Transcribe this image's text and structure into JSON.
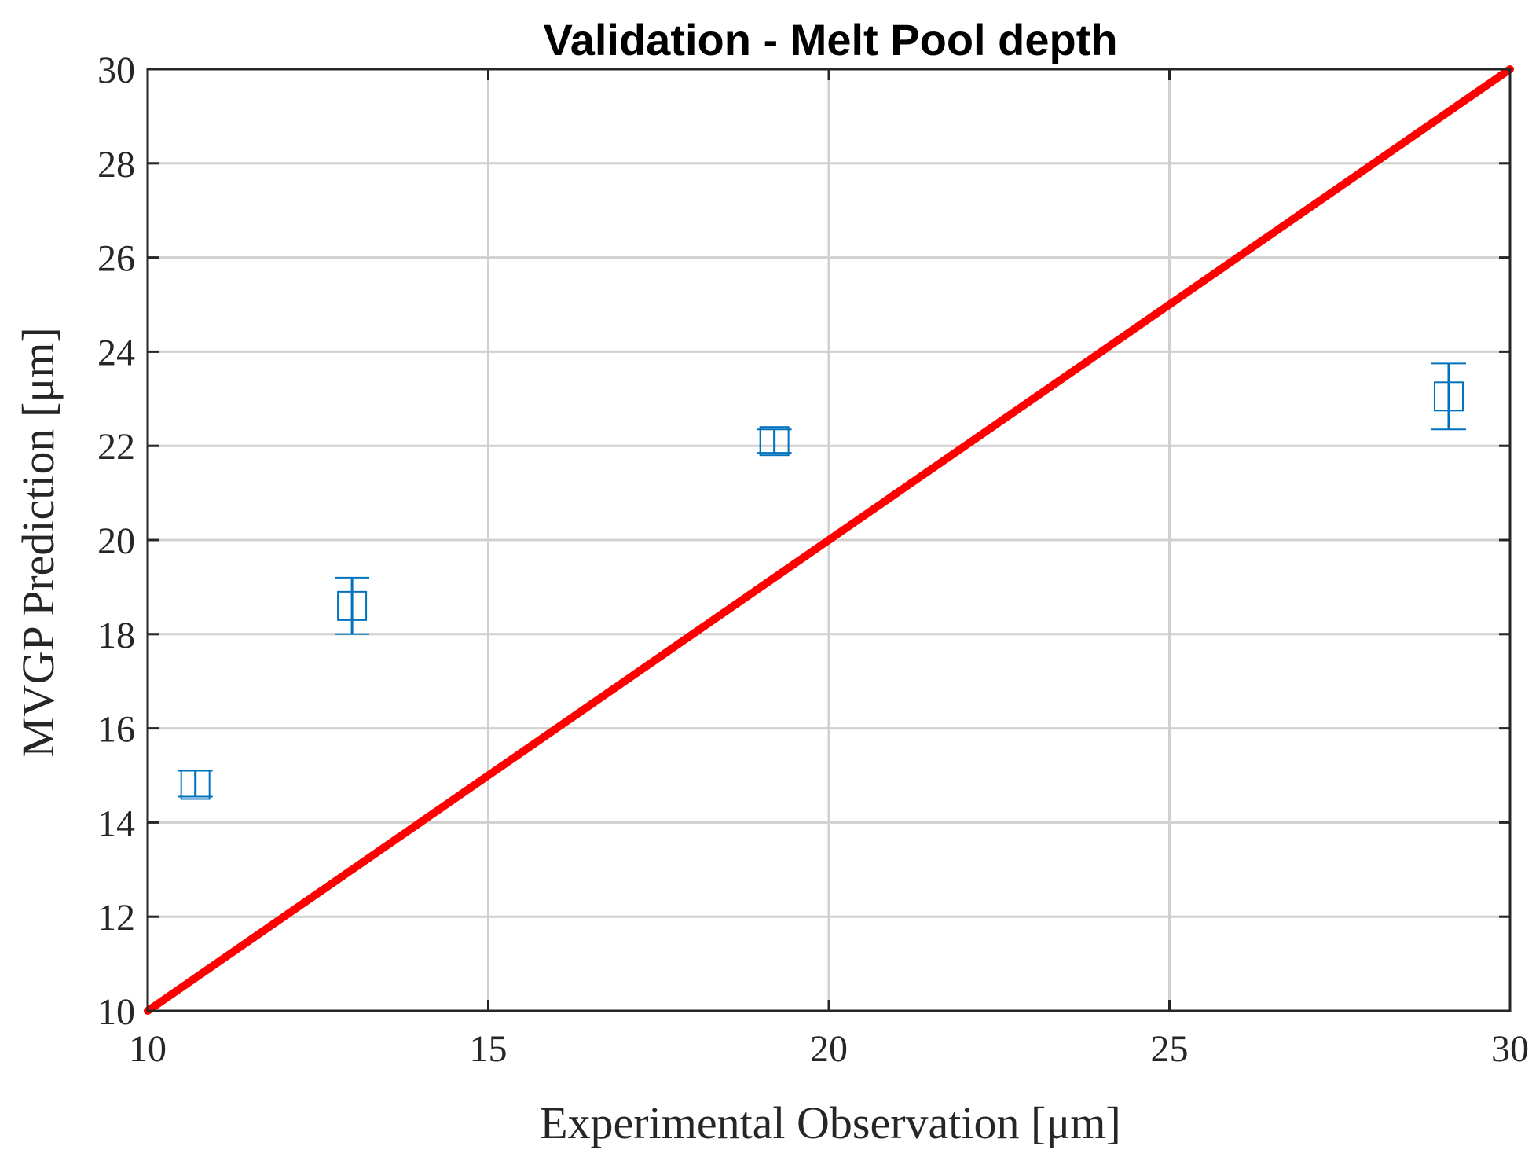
{
  "chart_data": {
    "type": "scatter",
    "title": "Validation - Melt Pool depth",
    "xlabel": "Experimental Observation [μm]",
    "ylabel": "MVGP Prediction [μm]",
    "xlim": [
      10,
      30
    ],
    "ylim": [
      10,
      30
    ],
    "xticks": [
      "10",
      "15",
      "20",
      "25",
      "30"
    ],
    "yticks": [
      "10",
      "12",
      "14",
      "16",
      "18",
      "20",
      "22",
      "24",
      "26",
      "28",
      "30"
    ],
    "grid": true,
    "series": [
      {
        "points": [
          {
            "x": 10.7,
            "y": 14.8,
            "ylow": 14.55,
            "yhigh": 15.1
          },
          {
            "x": 13.0,
            "y": 18.6,
            "ylow": 18.0,
            "yhigh": 19.2
          },
          {
            "x": 19.2,
            "y": 22.1,
            "ylow": 21.85,
            "yhigh": 22.35
          },
          {
            "x": 29.1,
            "y": 23.05,
            "ylow": 22.35,
            "yhigh": 23.75
          }
        ],
        "color": "#0072bd",
        "marker": "square"
      }
    ],
    "reference_line": {
      "x": [
        10,
        30
      ],
      "y": [
        10,
        30
      ],
      "color": "#ff0000"
    }
  }
}
